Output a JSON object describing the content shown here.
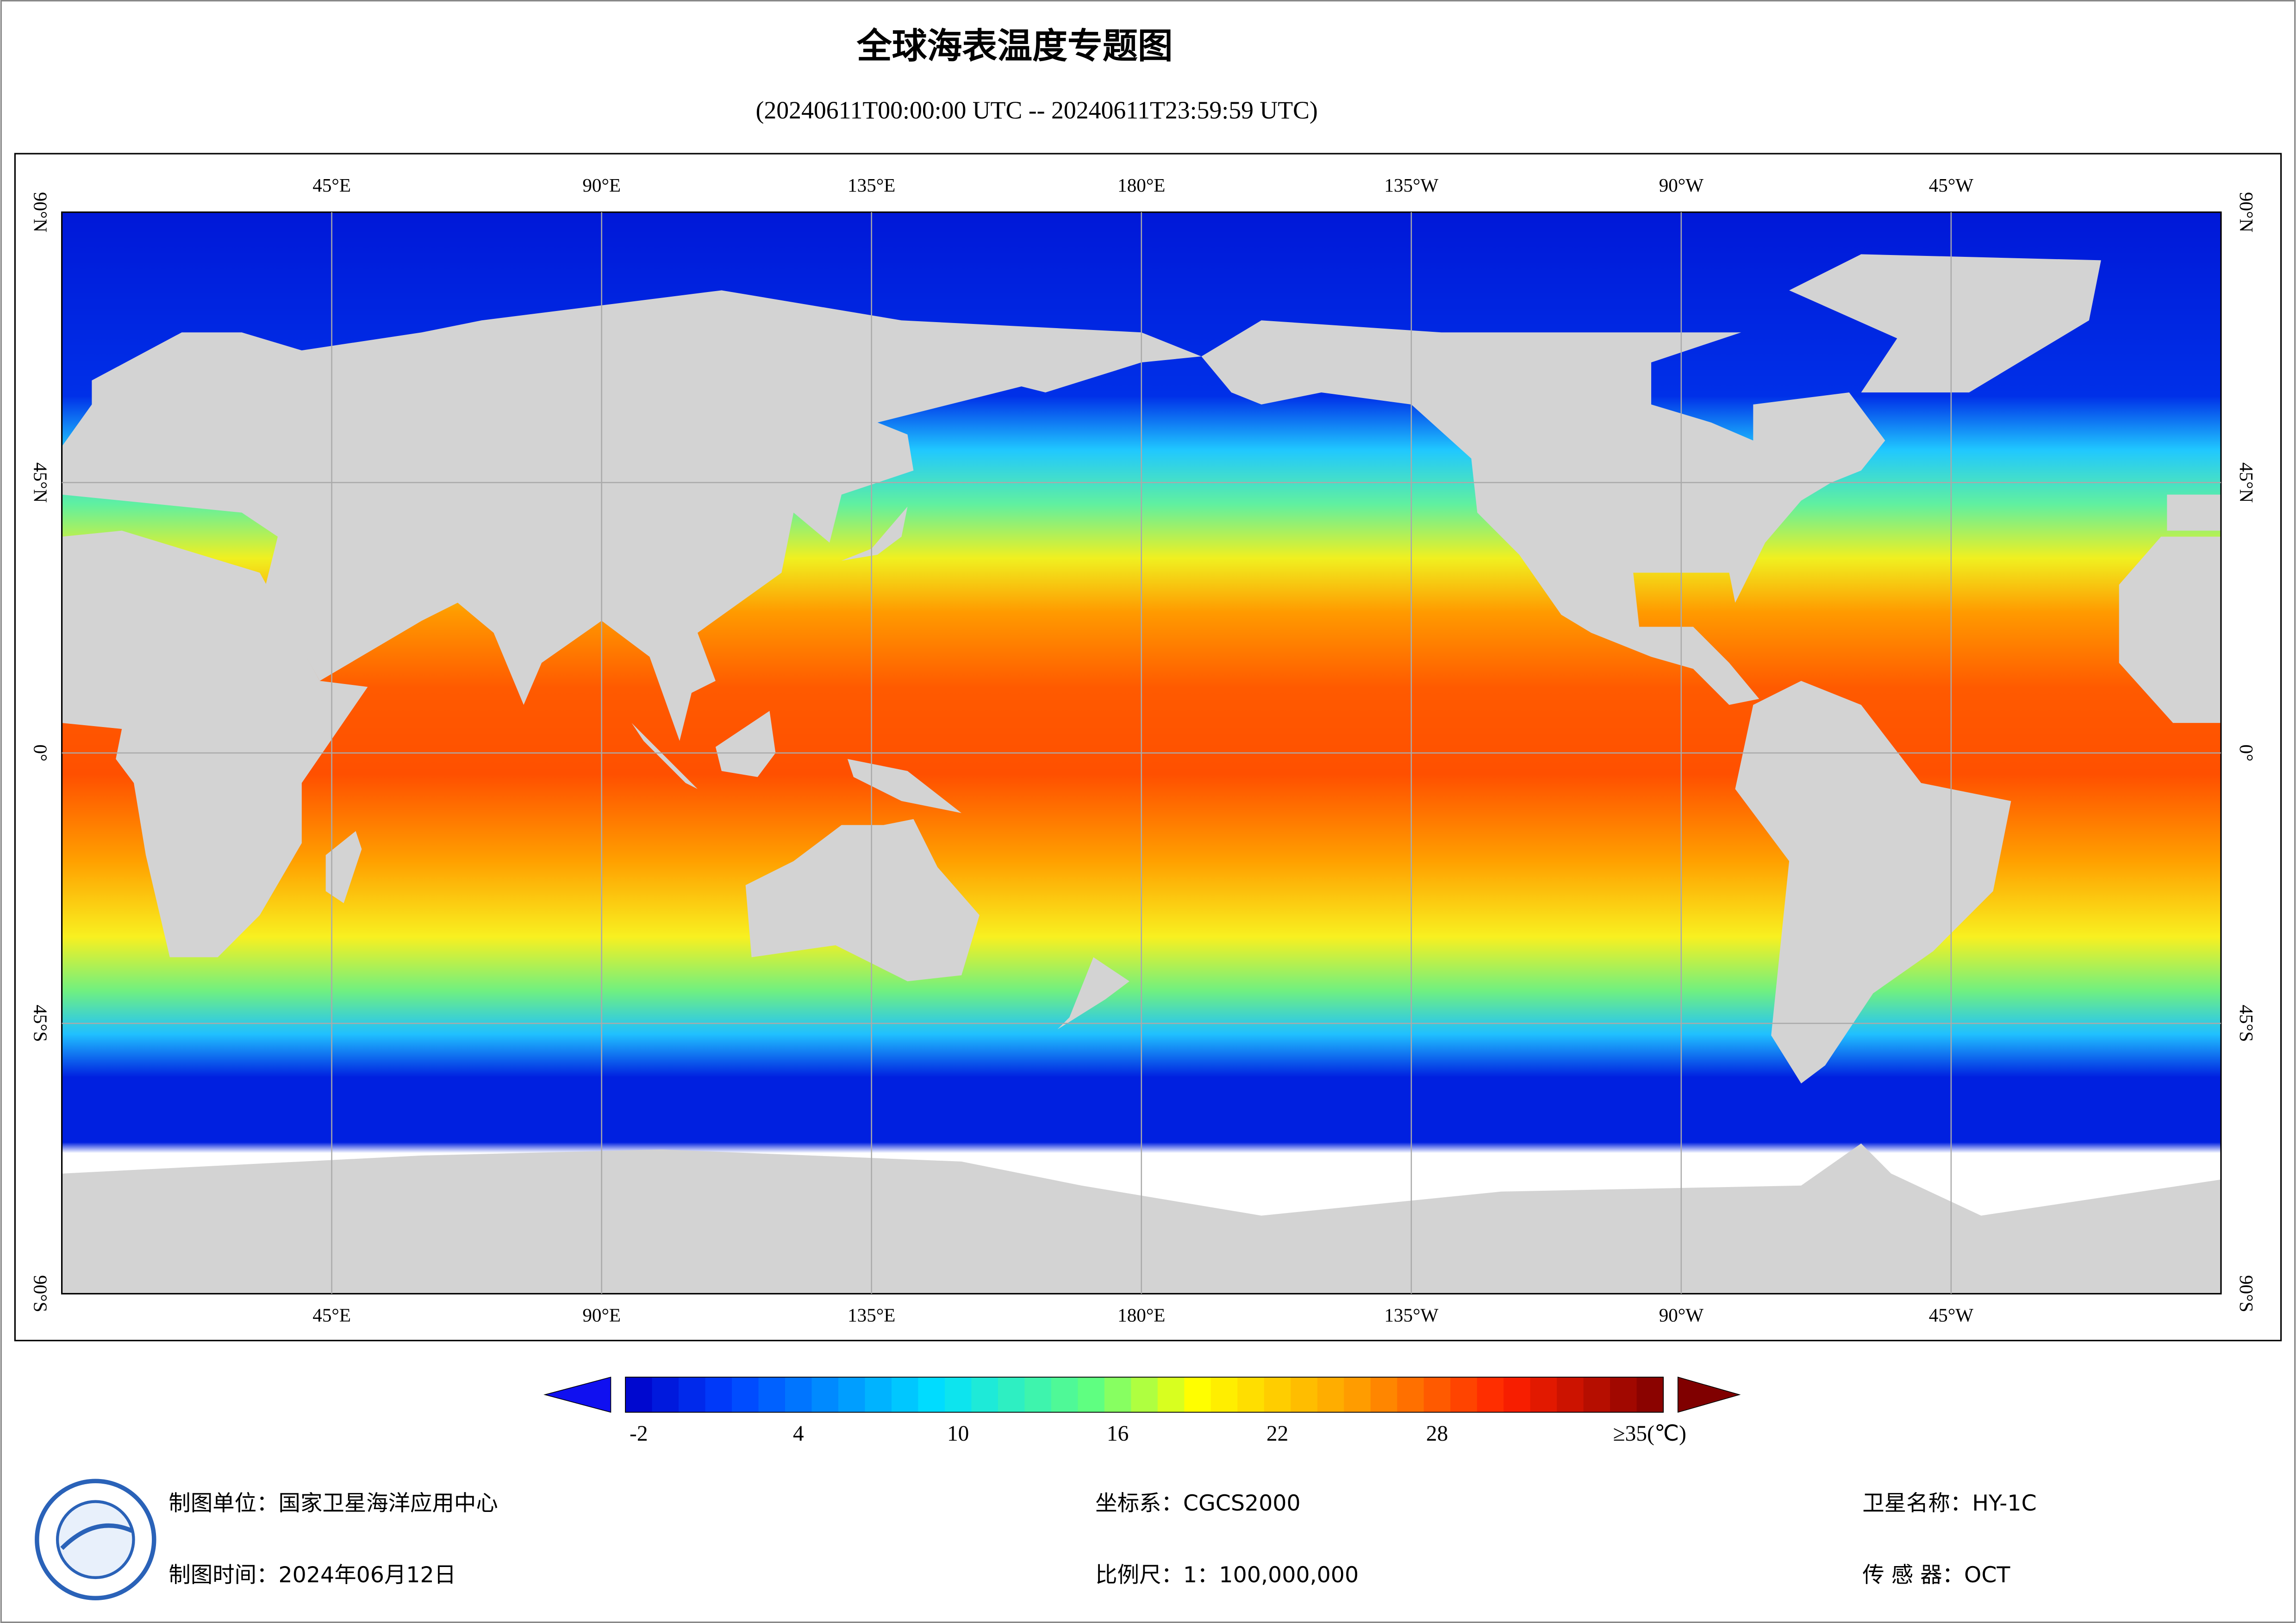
{
  "title": "全球海表温度专题图",
  "subtitle": "(20240611T00:00:00 UTC -- 20240611T23:59:59 UTC)",
  "map": {
    "lon_labels": [
      "45°E",
      "90°E",
      "135°E",
      "180°E",
      "135°W",
      "90°W",
      "45°W"
    ],
    "lat_labels": [
      "90°N",
      "45°N",
      "0°",
      "45°S",
      "90°S"
    ]
  },
  "colorbar": {
    "range": [
      -2.5,
      36.5
    ],
    "ticks": [
      -2,
      4,
      10,
      16,
      22,
      28,
      {
        "value": 35,
        "label": "≥35(℃)"
      }
    ]
  },
  "footer": {
    "unit": "制图单位：国家卫星海洋应用中心",
    "date": "制图时间：2024年06月12日",
    "crs": "坐标系：CGCS2000",
    "scale": "比例尺：1：100,000,000",
    "satellite": "卫星名称：HY-1C",
    "sensor": "传 感 器：OCT"
  }
}
